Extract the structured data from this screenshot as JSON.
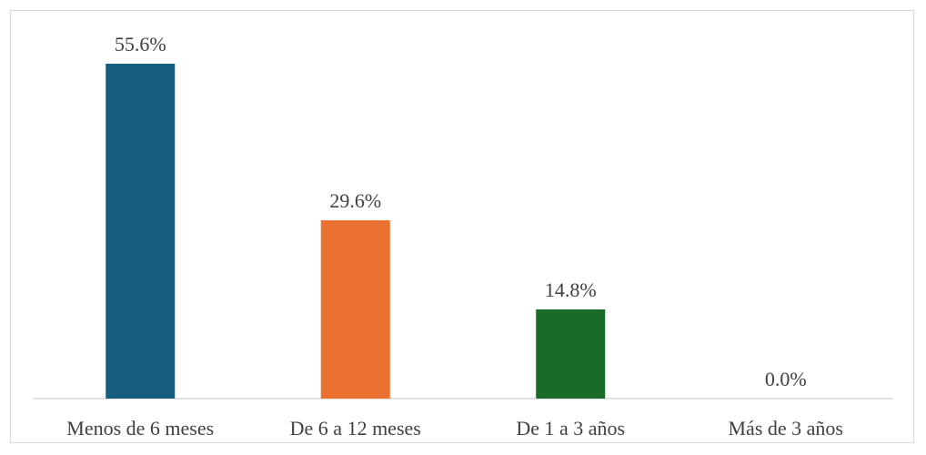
{
  "chart_data": {
    "type": "bar",
    "categories": [
      "Menos de 6 meses",
      "De 6 a 12 meses",
      "De 1 a 3 años",
      "Más de 3 años"
    ],
    "values": [
      55.6,
      29.6,
      14.8,
      0.0
    ],
    "value_labels": [
      "55.6%",
      "29.6%",
      "14.8%",
      "0.0%"
    ],
    "colors": [
      "#175e7e",
      "#ea7131",
      "#1a6b28",
      "#7f7f7f"
    ],
    "title": "",
    "xlabel": "",
    "ylabel": "",
    "ylim": [
      0,
      55.6
    ],
    "grid": false,
    "legend": "none"
  }
}
